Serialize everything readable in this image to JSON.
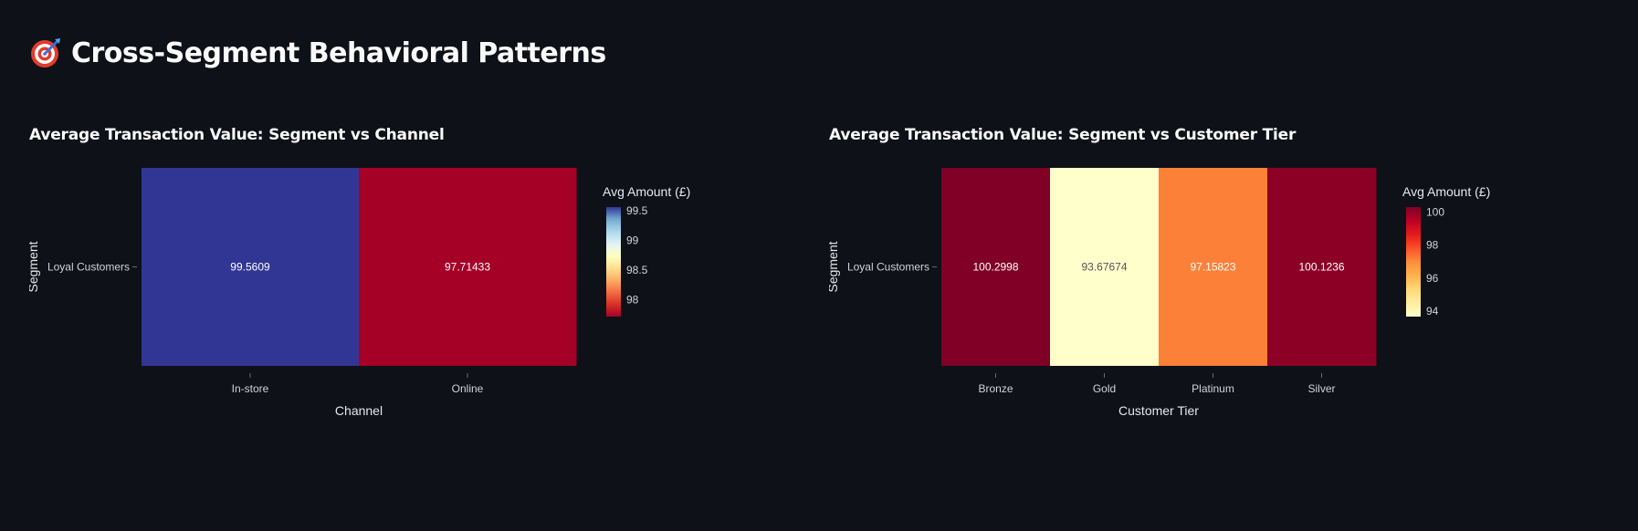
{
  "page": {
    "title": "Cross-Segment Behavioral Patterns",
    "title_icon": "target-icon"
  },
  "chart_data": [
    {
      "type": "heatmap",
      "title": "Average Transaction Value: Segment vs Channel",
      "xlabel": "Channel",
      "ylabel": "Segment",
      "x": [
        "In-store",
        "Online"
      ],
      "y": [
        "Loyal Customers"
      ],
      "values": [
        [
          99.5609,
          97.71433
        ]
      ],
      "cell_labels": [
        [
          "99.5609",
          "97.71433"
        ]
      ],
      "colorbar": {
        "title": "Avg Amount (£)",
        "colorscale": "RdYlBu",
        "range": [
          97.71433,
          99.5609
        ],
        "ticks": [
          98,
          98.5,
          99,
          99.5
        ],
        "tick_labels": [
          "98",
          "98.5",
          "99",
          "99.5"
        ]
      }
    },
    {
      "type": "heatmap",
      "title": "Average Transaction Value: Segment vs Customer Tier",
      "xlabel": "Customer Tier",
      "ylabel": "Segment",
      "x": [
        "Bronze",
        "Gold",
        "Platinum",
        "Silver"
      ],
      "y": [
        "Loyal Customers"
      ],
      "values": [
        [
          100.2998,
          93.67674,
          97.15823,
          100.1236
        ]
      ],
      "cell_labels": [
        [
          "100.2998",
          "93.67674",
          "97.15823",
          "100.1236"
        ]
      ],
      "colorbar": {
        "title": "Avg Amount (£)",
        "colorscale": "YlOrRd",
        "range": [
          93.67674,
          100.2998
        ],
        "ticks": [
          94,
          96,
          98,
          100
        ],
        "tick_labels": [
          "94",
          "96",
          "98",
          "100"
        ]
      }
    }
  ]
}
